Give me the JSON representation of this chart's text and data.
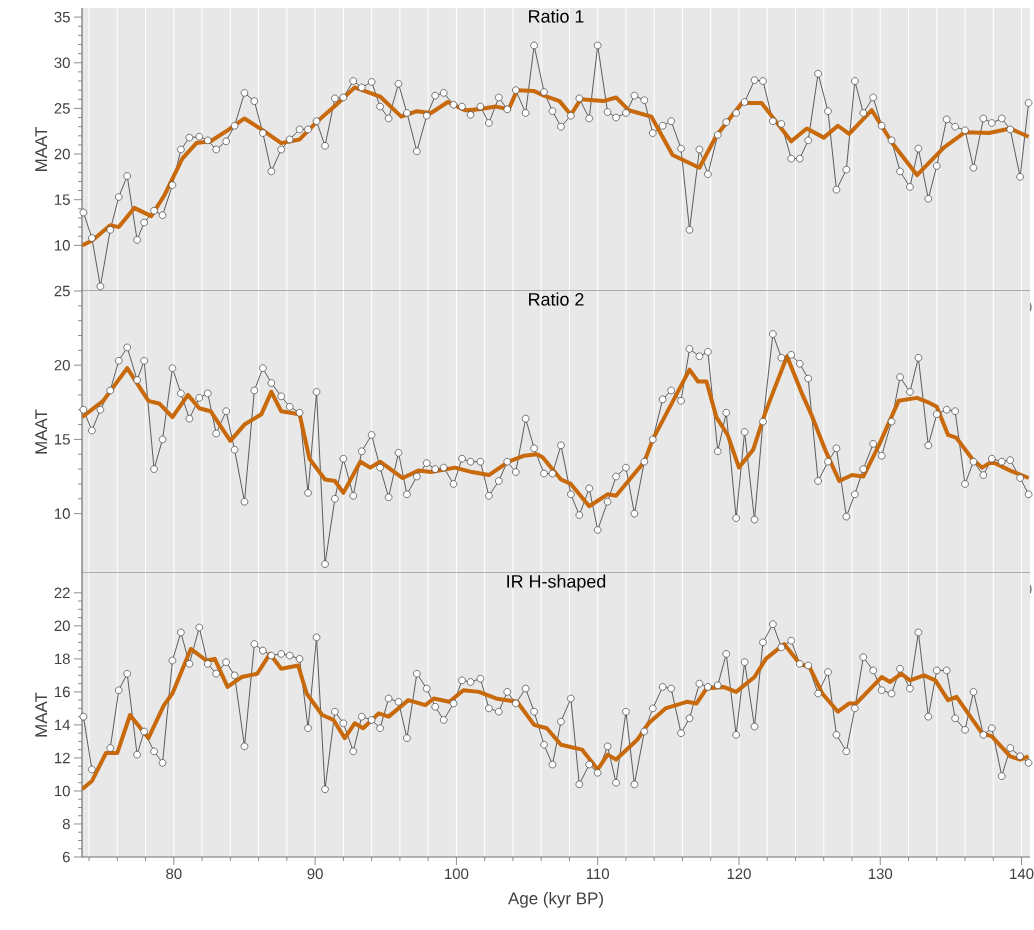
{
  "chart_data": [
    {
      "type": "line",
      "title": "Ratio 1",
      "ylabel": "MAAT",
      "grid": "x",
      "tick_labels": "y",
      "xlim": [
        73.5,
        140.6
      ],
      "ylim": [
        5,
        36
      ],
      "xticks": [
        {
          "value": 74,
          "label": null
        },
        {
          "value": 76,
          "label": null
        },
        {
          "value": 78,
          "label": null
        },
        80,
        {
          "value": 82,
          "label": null
        },
        {
          "value": 84,
          "label": null
        },
        {
          "value": 86,
          "label": null
        },
        {
          "value": 88,
          "label": null
        },
        90,
        {
          "value": 92,
          "label": null
        },
        {
          "value": 94,
          "label": null
        },
        {
          "value": 96,
          "label": null
        },
        {
          "value": 98,
          "label": null
        },
        100,
        {
          "value": 102,
          "label": null
        },
        {
          "value": 104,
          "label": null
        },
        {
          "value": 106,
          "label": null
        },
        {
          "value": 108,
          "label": null
        },
        110,
        {
          "value": 112,
          "label": null
        },
        {
          "value": 114,
          "label": null
        },
        {
          "value": 116,
          "label": null
        },
        {
          "value": 118,
          "label": null
        },
        120,
        {
          "value": 122,
          "label": null
        },
        {
          "value": 124,
          "label": null
        },
        {
          "value": 126,
          "label": null
        },
        {
          "value": 128,
          "label": null
        },
        130,
        {
          "value": 132,
          "label": null
        },
        {
          "value": 134,
          "label": null
        },
        {
          "value": 136,
          "label": null
        },
        {
          "value": 138,
          "label": null
        },
        140
      ],
      "yticks": [
        10,
        15,
        20,
        25,
        30,
        35
      ],
      "x": [
        73.6,
        74.2,
        74.8,
        75.5,
        76.1,
        76.7,
        77.4,
        77.9,
        78.6,
        79.2,
        79.9,
        80.5,
        81.1,
        81.8,
        82.4,
        83.0,
        83.7,
        84.3,
        85.0,
        85.7,
        86.3,
        86.9,
        87.6,
        88.2,
        88.9,
        89.5,
        90.1,
        90.7,
        91.4,
        92.0,
        92.7,
        93.3,
        94.0,
        94.6,
        95.2,
        95.9,
        96.5,
        97.2,
        97.9,
        98.5,
        99.1,
        99.8,
        100.4,
        101.0,
        101.7,
        102.3,
        103.0,
        103.6,
        104.2,
        104.9,
        105.5,
        106.2,
        106.8,
        107.4,
        108.1,
        108.7,
        109.4,
        110.0,
        110.7,
        111.3,
        112.0,
        112.6,
        113.3,
        113.9,
        114.6,
        115.2,
        115.9,
        116.5,
        117.2,
        117.8,
        118.5,
        119.1,
        119.8,
        120.4,
        121.1,
        121.7,
        122.4,
        123.0,
        123.7,
        124.3,
        124.9,
        125.6,
        126.3,
        126.9,
        127.6,
        128.2,
        128.8,
        129.5,
        130.1,
        130.8,
        131.4,
        132.1,
        132.7,
        133.4,
        134.0,
        134.7,
        135.3,
        136.0,
        136.6,
        137.3,
        137.9,
        138.6,
        139.2,
        139.9,
        140.5
      ],
      "series": [
        {
          "color": "#4d4d4d",
          "marker": "circle",
          "values": [
            13.6,
            10.8,
            5.5,
            11.7,
            15.3,
            17.6,
            10.6,
            12.5,
            13.8,
            13.3,
            16.6,
            20.5,
            21.8,
            21.9,
            21.5,
            20.5,
            21.4,
            23.1,
            26.7,
            25.8,
            22.3,
            18.1,
            20.5,
            21.6,
            22.7,
            22.7,
            23.6,
            20.9,
            26.1,
            26.2,
            28.0,
            27.3,
            27.9,
            25.2,
            23.9,
            27.7,
            24.5,
            20.3,
            24.2,
            26.4,
            26.7,
            25.4,
            25.2,
            24.3,
            25.2,
            23.4,
            26.2,
            24.9,
            27.0,
            24.5,
            31.9,
            26.8,
            24.7,
            23.0,
            24.2,
            26.1,
            23.9,
            31.9,
            24.6,
            24.0,
            24.5,
            26.4,
            25.9,
            22.3,
            23.1,
            23.6,
            20.6,
            11.7,
            20.5,
            17.8,
            22.1,
            23.5,
            24.5,
            25.7,
            28.1,
            28.0,
            23.6,
            23.3,
            19.5,
            19.5,
            21.5,
            28.8,
            24.7,
            16.1,
            18.3,
            28.0,
            24.5,
            26.2,
            23.1,
            21.5,
            18.1,
            16.4,
            20.6,
            15.1,
            18.7,
            23.8,
            23.0,
            22.6,
            18.5,
            23.9,
            23.4,
            23.9,
            22.7,
            17.5,
            25.6
          ]
        },
        {
          "color": "#c8690c",
          "marker": "none",
          "x": [
            73.5,
            74.2,
            75.5,
            76.1,
            77.2,
            78.4,
            79.3,
            80.6,
            81.6,
            82.6,
            83.8,
            85.0,
            86.2,
            87.6,
            88.9,
            90.1,
            91.5,
            92.8,
            94.6,
            96.1,
            97.2,
            98.2,
            99.4,
            100.6,
            101.6,
            102.8,
            103.7,
            104.3,
            105.5,
            106.2,
            107.3,
            108.1,
            108.8,
            110.4,
            111.3,
            112.2,
            113.8,
            115.3,
            117.2,
            118.4,
            120.2,
            121.6,
            123.7,
            124.8,
            126.0,
            127.0,
            127.8,
            129.4,
            130.9,
            132.6,
            134.5,
            136.0,
            137.7,
            139.2,
            140.5
          ],
          "values": [
            10.0,
            10.5,
            12.2,
            12.0,
            14.1,
            13.2,
            15.4,
            19.5,
            21.2,
            21.4,
            22.6,
            23.9,
            22.7,
            21.2,
            21.6,
            23.5,
            25.4,
            27.3,
            26.3,
            24.1,
            24.7,
            24.5,
            25.7,
            24.8,
            24.9,
            25.2,
            24.9,
            27.0,
            26.9,
            26.4,
            25.8,
            24.3,
            26.0,
            25.8,
            26.2,
            24.8,
            24.1,
            19.9,
            18.5,
            22.0,
            25.6,
            25.6,
            21.4,
            22.8,
            21.8,
            23.1,
            22.2,
            24.8,
            21.1,
            17.7,
            20.7,
            22.4,
            22.3,
            22.8,
            21.9
          ]
        }
      ]
    },
    {
      "type": "line",
      "title": "Ratio 2",
      "ylabel": "MAAT",
      "grid": "x",
      "tick_labels": "y",
      "xlim": [
        73.5,
        140.6
      ],
      "ylim": [
        6,
        25
      ],
      "xticks": [
        {
          "value": 74,
          "label": null
        },
        {
          "value": 76,
          "label": null
        },
        {
          "value": 78,
          "label": null
        },
        80,
        {
          "value": 82,
          "label": null
        },
        {
          "value": 84,
          "label": null
        },
        {
          "value": 86,
          "label": null
        },
        {
          "value": 88,
          "label": null
        },
        90,
        {
          "value": 92,
          "label": null
        },
        {
          "value": 94,
          "label": null
        },
        {
          "value": 96,
          "label": null
        },
        {
          "value": 98,
          "label": null
        },
        100,
        {
          "value": 102,
          "label": null
        },
        {
          "value": 104,
          "label": null
        },
        {
          "value": 106,
          "label": null
        },
        {
          "value": 108,
          "label": null
        },
        110,
        {
          "value": 112,
          "label": null
        },
        {
          "value": 114,
          "label": null
        },
        {
          "value": 116,
          "label": null
        },
        {
          "value": 118,
          "label": null
        },
        120,
        {
          "value": 122,
          "label": null
        },
        {
          "value": 124,
          "label": null
        },
        {
          "value": 126,
          "label": null
        },
        {
          "value": 128,
          "label": null
        },
        130,
        {
          "value": 132,
          "label": null
        },
        {
          "value": 134,
          "label": null
        },
        {
          "value": 136,
          "label": null
        },
        {
          "value": 138,
          "label": null
        },
        140
      ],
      "yticks": [
        10,
        15,
        20,
        25
      ],
      "x": [
        73.6,
        74.2,
        74.8,
        75.5,
        76.1,
        76.7,
        77.4,
        77.9,
        78.6,
        79.2,
        79.9,
        80.5,
        81.1,
        81.8,
        82.4,
        83.0,
        83.7,
        84.3,
        85.0,
        85.7,
        86.3,
        86.9,
        87.6,
        88.2,
        88.9,
        89.5,
        90.1,
        90.7,
        91.4,
        92.0,
        92.7,
        93.3,
        94.0,
        94.6,
        95.2,
        95.9,
        96.5,
        97.2,
        97.9,
        98.5,
        99.1,
        99.8,
        100.4,
        101.0,
        101.7,
        102.3,
        103.0,
        103.6,
        104.2,
        104.9,
        105.5,
        106.2,
        106.8,
        107.4,
        108.1,
        108.7,
        109.4,
        110.0,
        110.7,
        111.3,
        112.0,
        112.6,
        113.3,
        113.9,
        114.6,
        115.2,
        115.9,
        116.5,
        117.2,
        117.8,
        118.5,
        119.1,
        119.8,
        120.4,
        121.1,
        121.7,
        122.4,
        123.0,
        123.7,
        124.3,
        124.9,
        125.6,
        126.3,
        126.9,
        127.6,
        128.2,
        128.8,
        129.5,
        130.1,
        130.8,
        131.4,
        132.1,
        132.7,
        133.4,
        134.0,
        134.7,
        135.3,
        136.0,
        136.6,
        137.3,
        137.9,
        138.6,
        139.2,
        139.9,
        140.5
      ],
      "series": [
        {
          "color": "#4d4d4d",
          "marker": "circle",
          "values": [
            17.0,
            15.6,
            17.0,
            18.3,
            20.3,
            21.2,
            19.0,
            20.3,
            13.0,
            15.0,
            19.8,
            18.1,
            16.4,
            17.8,
            18.1,
            15.4,
            16.9,
            14.3,
            10.8,
            18.3,
            19.8,
            18.8,
            17.9,
            17.2,
            16.8,
            11.4,
            18.2,
            6.6,
            11.0,
            13.7,
            11.2,
            14.2,
            15.3,
            13.1,
            11.1,
            14.1,
            11.3,
            12.5,
            13.4,
            13.0,
            13.1,
            12.0,
            13.7,
            13.5,
            13.5,
            11.2,
            12.2,
            13.5,
            12.8,
            16.4,
            14.4,
            12.7,
            12.7,
            14.6,
            11.3,
            9.9,
            11.7,
            8.9,
            10.8,
            12.5,
            13.1,
            10.0,
            13.5,
            15.0,
            17.7,
            18.3,
            17.6,
            21.1,
            20.6,
            20.9,
            14.2,
            16.8,
            9.7,
            15.5,
            9.6,
            16.2,
            22.1,
            20.5,
            20.7,
            20.1,
            19.1,
            12.2,
            13.5,
            14.4,
            9.8,
            11.3,
            13.0,
            14.7,
            13.9,
            16.2,
            19.2,
            18.2,
            20.5,
            14.6,
            16.7,
            17.0,
            16.9,
            12.0,
            13.5,
            12.6,
            13.7,
            13.5,
            13.6,
            12.4,
            11.3
          ]
        },
        {
          "color": "#c8690c",
          "marker": "none",
          "x": [
            73.5,
            75.0,
            76.7,
            78.2,
            79.0,
            79.9,
            81.0,
            81.8,
            82.6,
            84.0,
            85.0,
            86.2,
            86.9,
            87.6,
            88.9,
            89.6,
            90.7,
            91.4,
            92.0,
            93.2,
            93.9,
            94.6,
            96.2,
            97.3,
            98.2,
            99.9,
            101.1,
            102.3,
            103.7,
            104.8,
            105.7,
            106.1,
            107.4,
            108.1,
            109.4,
            110.7,
            111.3,
            113.3,
            113.9,
            116.5,
            117.1,
            117.7,
            118.4,
            119.2,
            120.0,
            121.0,
            121.9,
            122.3,
            123.4,
            124.5,
            125.2,
            126.1,
            127.1,
            128.0,
            128.8,
            129.9,
            131.3,
            132.6,
            133.4,
            134.0,
            134.8,
            135.4,
            136.5,
            137.2,
            137.9,
            139.2,
            140.5
          ],
          "values": [
            16.5,
            17.6,
            19.8,
            17.6,
            17.4,
            16.5,
            18.0,
            17.1,
            16.9,
            14.9,
            16.0,
            16.7,
            18.2,
            16.9,
            16.7,
            13.7,
            12.3,
            12.2,
            11.4,
            13.5,
            13.1,
            13.5,
            12.4,
            12.9,
            12.8,
            13.1,
            12.8,
            12.6,
            13.5,
            13.9,
            14.0,
            13.8,
            12.3,
            12.0,
            10.5,
            11.3,
            11.2,
            13.5,
            15.0,
            19.7,
            18.9,
            18.9,
            16.5,
            15.3,
            13.1,
            14.3,
            16.9,
            17.9,
            20.6,
            18.0,
            16.5,
            14.3,
            12.2,
            12.6,
            12.5,
            14.6,
            17.6,
            17.8,
            17.5,
            17.2,
            15.3,
            15.1,
            13.7,
            13.1,
            13.5,
            12.9,
            12.4
          ]
        }
      ]
    },
    {
      "type": "line",
      "title": "IR H-shaped",
      "ylabel": "MAAT",
      "xlabel": "Age (kyr BP)",
      "grid": "x",
      "xlim": [
        73.5,
        140.6
      ],
      "ylim": [
        6,
        23.2
      ],
      "xticks": [
        {
          "value": 74,
          "label": null
        },
        {
          "value": 76,
          "label": null
        },
        {
          "value": 78,
          "label": null
        },
        80,
        {
          "value": 82,
          "label": null
        },
        {
          "value": 84,
          "label": null
        },
        {
          "value": 86,
          "label": null
        },
        {
          "value": 88,
          "label": null
        },
        90,
        {
          "value": 92,
          "label": null
        },
        {
          "value": 94,
          "label": null
        },
        {
          "value": 96,
          "label": null
        },
        {
          "value": 98,
          "label": null
        },
        100,
        {
          "value": 102,
          "label": null
        },
        {
          "value": 104,
          "label": null
        },
        {
          "value": 106,
          "label": null
        },
        {
          "value": 108,
          "label": null
        },
        110,
        {
          "value": 112,
          "label": null
        },
        {
          "value": 114,
          "label": null
        },
        {
          "value": 116,
          "label": null
        },
        {
          "value": 118,
          "label": null
        },
        120,
        {
          "value": 122,
          "label": null
        },
        {
          "value": 124,
          "label": null
        },
        {
          "value": 126,
          "label": null
        },
        {
          "value": 128,
          "label": null
        },
        130,
        {
          "value": 132,
          "label": null
        },
        {
          "value": 134,
          "label": null
        },
        {
          "value": 136,
          "label": null
        },
        {
          "value": 138,
          "label": null
        },
        140
      ],
      "yticks": [
        6,
        8,
        10,
        12,
        14,
        16,
        18,
        20,
        22
      ],
      "x": [
        73.6,
        74.2,
        74.8,
        75.5,
        76.1,
        76.7,
        77.4,
        77.9,
        78.6,
        79.2,
        79.9,
        80.5,
        81.1,
        81.8,
        82.4,
        83.0,
        83.7,
        84.3,
        85.0,
        85.7,
        86.3,
        86.9,
        87.6,
        88.2,
        88.9,
        89.5,
        90.1,
        90.7,
        91.4,
        92.0,
        92.7,
        93.3,
        94.0,
        94.6,
        95.2,
        95.9,
        96.5,
        97.2,
        97.9,
        98.5,
        99.1,
        99.8,
        100.4,
        101.0,
        101.7,
        102.3,
        103.0,
        103.6,
        104.2,
        104.9,
        105.5,
        106.2,
        106.8,
        107.4,
        108.1,
        108.7,
        109.4,
        110.0,
        110.7,
        111.3,
        112.0,
        112.6,
        113.3,
        113.9,
        114.6,
        115.2,
        115.9,
        116.5,
        117.2,
        117.8,
        118.5,
        119.1,
        119.8,
        120.4,
        121.1,
        121.7,
        122.4,
        123.0,
        123.7,
        124.3,
        124.9,
        125.6,
        126.3,
        126.9,
        127.6,
        128.2,
        128.8,
        129.5,
        130.1,
        130.8,
        131.4,
        132.1,
        132.7,
        133.4,
        134.0,
        134.7,
        135.3,
        136.0,
        136.6,
        137.3,
        137.9,
        138.6,
        139.2,
        139.9,
        140.5
      ],
      "series": [
        {
          "color": "#4d4d4d",
          "marker": "circle",
          "values": [
            14.5,
            11.3,
            null,
            12.6,
            16.1,
            17.1,
            12.2,
            13.6,
            12.4,
            11.7,
            17.9,
            19.6,
            17.7,
            19.9,
            17.7,
            17.1,
            17.8,
            17.0,
            12.7,
            18.9,
            18.5,
            18.2,
            18.3,
            18.2,
            18.0,
            13.8,
            19.3,
            10.1,
            14.8,
            14.1,
            12.4,
            14.5,
            14.3,
            13.8,
            15.6,
            15.4,
            13.2,
            17.1,
            16.2,
            15.1,
            14.3,
            15.3,
            16.7,
            16.6,
            16.8,
            15.0,
            14.8,
            16.0,
            15.3,
            16.2,
            14.8,
            12.8,
            11.6,
            14.2,
            15.6,
            10.4,
            11.6,
            11.1,
            12.7,
            10.5,
            14.8,
            10.4,
            13.6,
            15.0,
            16.3,
            16.2,
            13.5,
            14.4,
            16.5,
            16.3,
            16.4,
            18.3,
            13.4,
            17.8,
            13.9,
            19.0,
            20.1,
            18.7,
            19.1,
            17.7,
            17.6,
            15.9,
            17.2,
            13.4,
            12.4,
            15.0,
            18.1,
            17.3,
            16.1,
            15.9,
            17.4,
            16.2,
            19.6,
            14.5,
            17.3,
            17.3,
            14.4,
            13.7,
            16.0,
            13.4,
            13.8,
            10.9,
            12.6,
            12.1,
            11.7
          ]
        },
        {
          "color": "#c8690c",
          "marker": "none",
          "x": [
            73.5,
            74.2,
            75.2,
            76.0,
            76.9,
            78.2,
            79.3,
            79.9,
            81.2,
            82.3,
            82.9,
            83.8,
            84.8,
            85.9,
            86.8,
            87.6,
            88.8,
            89.4,
            90.5,
            91.3,
            92.1,
            92.8,
            93.4,
            94.5,
            95.2,
            96.6,
            97.8,
            98.4,
            99.5,
            100.5,
            101.6,
            102.8,
            104.3,
            105.5,
            106.4,
            107.4,
            108.9,
            110.0,
            110.7,
            111.3,
            112.8,
            113.6,
            114.8,
            116.3,
            117.0,
            117.7,
            118.9,
            119.8,
            121.1,
            121.9,
            123.2,
            124.3,
            125.0,
            125.9,
            127.0,
            127.8,
            128.3,
            130.1,
            130.7,
            131.5,
            132.1,
            133.1,
            133.9,
            134.8,
            135.4,
            137.2,
            137.9,
            139.2,
            139.9,
            140.5
          ],
          "values": [
            10.1,
            10.6,
            12.3,
            12.3,
            14.6,
            13.2,
            15.2,
            15.9,
            18.6,
            17.9,
            18.0,
            16.3,
            16.9,
            17.1,
            18.3,
            17.4,
            17.6,
            15.9,
            14.6,
            14.3,
            13.2,
            14.1,
            13.8,
            14.7,
            14.5,
            15.5,
            15.2,
            15.6,
            15.4,
            16.1,
            16.0,
            15.6,
            15.4,
            14.0,
            13.8,
            12.8,
            12.5,
            11.3,
            12.2,
            11.9,
            13.1,
            14.1,
            15.0,
            15.4,
            15.3,
            16.2,
            16.3,
            16.0,
            16.9,
            18.0,
            18.9,
            17.7,
            17.5,
            15.9,
            14.8,
            15.3,
            15.3,
            16.9,
            16.6,
            17.1,
            16.7,
            17.0,
            16.7,
            15.5,
            15.7,
            13.5,
            13.3,
            12.1,
            11.9,
            12.1
          ]
        }
      ]
    }
  ]
}
